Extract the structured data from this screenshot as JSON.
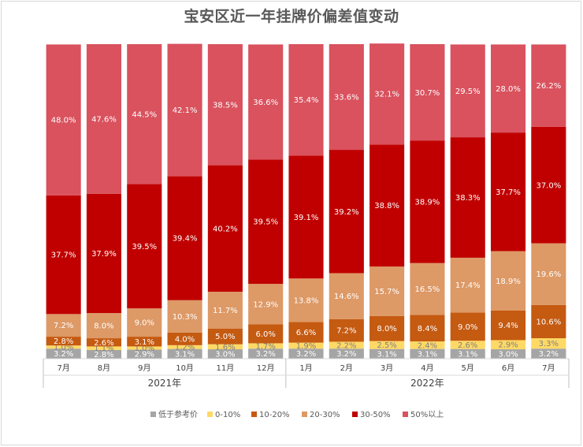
{
  "chart_data": {
    "type": "bar",
    "stacked": true,
    "title": "宝安区近一年挂牌价偏差值变动",
    "categories": [
      "7月",
      "8月",
      "9月",
      "10月",
      "11月",
      "12月",
      "1月",
      "2月",
      "3月",
      "4月",
      "5月",
      "6月",
      "7月"
    ],
    "year_groups": [
      {
        "label": "2021年",
        "start": 0,
        "end": 5
      },
      {
        "label": "2022年",
        "start": 6,
        "end": 12
      }
    ],
    "series": [
      {
        "name": "低于参考价",
        "color": "#a5a5a5",
        "values": [
          3.2,
          2.8,
          2.9,
          3.1,
          3.0,
          3.2,
          3.2,
          3.2,
          3.1,
          3.1,
          3.1,
          3.0,
          3.2
        ]
      },
      {
        "name": "0-10%",
        "color": "#ffd966",
        "values": [
          1.0,
          1.1,
          1.0,
          1.2,
          1.6,
          1.7,
          1.9,
          2.2,
          2.5,
          2.4,
          2.6,
          2.9,
          3.3
        ]
      },
      {
        "name": "10-20%",
        "color": "#c55a11",
        "values": [
          2.8,
          2.6,
          3.1,
          4.0,
          5.0,
          6.0,
          6.6,
          7.2,
          8.0,
          8.4,
          9.0,
          9.4,
          10.6
        ]
      },
      {
        "name": "20-30%",
        "color": "#dd9966",
        "values": [
          7.2,
          8.0,
          9.0,
          10.3,
          11.7,
          12.9,
          13.8,
          14.6,
          15.7,
          16.5,
          17.4,
          18.9,
          19.6
        ]
      },
      {
        "name": "30-50%",
        "color": "#c00000",
        "values": [
          37.7,
          37.9,
          39.5,
          39.4,
          40.2,
          39.5,
          39.1,
          39.2,
          38.8,
          38.9,
          38.3,
          37.7,
          37.0
        ]
      },
      {
        "name": "50%以上",
        "color": "#d9525e",
        "values": [
          48.0,
          47.6,
          44.5,
          42.1,
          38.5,
          36.6,
          35.4,
          33.6,
          32.1,
          30.7,
          29.5,
          28.0,
          26.2
        ]
      }
    ],
    "value_suffix": "%",
    "ylim": [
      0,
      100
    ],
    "legend_position": "bottom"
  }
}
